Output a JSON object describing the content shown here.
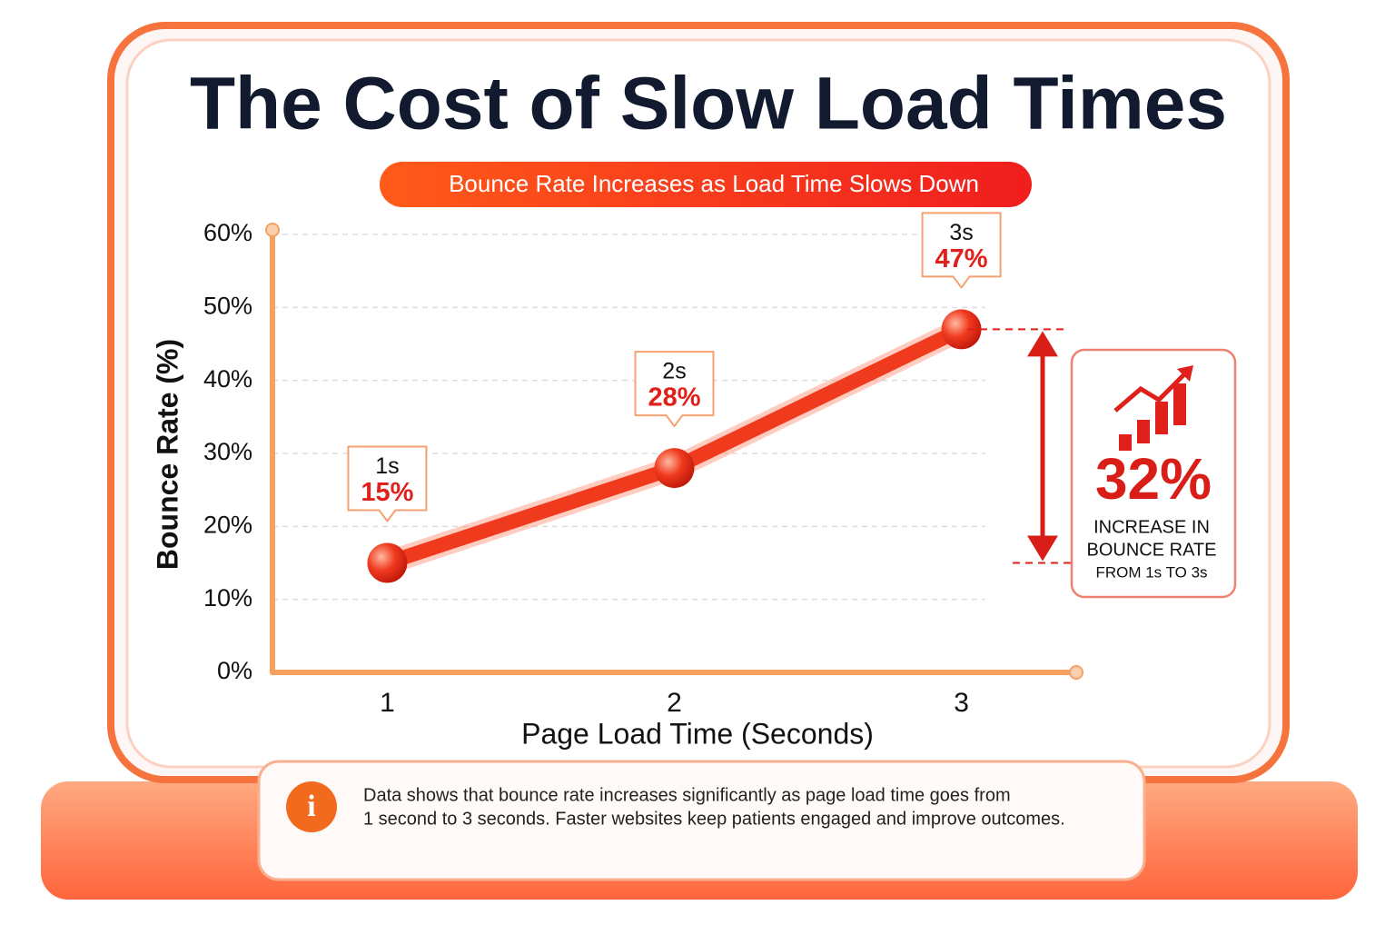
{
  "chart_data": {
    "type": "line",
    "title": "The Cost of Slow Load Times",
    "subtitle": "Bounce Rate Increases as Load Time Slows Down",
    "x_label": "Page Load Time (Seconds)",
    "y_label": "Bounce Rate (%)",
    "x": [
      1,
      2,
      3
    ],
    "values": [
      15,
      28,
      47
    ],
    "value_labels": [
      "15%",
      "28%",
      "47%"
    ],
    "callout_labels": [
      "1s",
      "2s",
      "3s"
    ],
    "color": "#f03a1e",
    "xlim": [
      0.6,
      3.4
    ],
    "xticks": [
      1,
      2,
      3
    ],
    "ylim": [
      0,
      60
    ],
    "yticks": [
      {
        "value": 0,
        "label": "0%"
      },
      {
        "value": 10,
        "label": "10%"
      },
      {
        "value": 20,
        "label": "20%"
      },
      {
        "value": 30,
        "label": "30%"
      },
      {
        "value": 40,
        "label": "40%"
      },
      {
        "value": 50,
        "label": "50%"
      },
      {
        "value": 60,
        "label": "60%"
      }
    ],
    "grid": true,
    "annotation": {
      "value": 32,
      "label": "32%",
      "text": [
        "INCREASE IN",
        "BOUNCE RATE"
      ],
      "subtext": "FROM 1s TO 3s"
    },
    "note_lines": [
      "Data shows that bounce rate increases significantly as page load time goes from",
      "1 second to 3 seconds. Faster websites keep patients engaged and improve outcomes."
    ]
  }
}
